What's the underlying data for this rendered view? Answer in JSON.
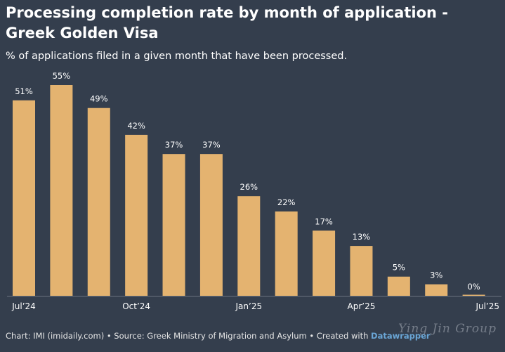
{
  "header": {
    "title": "Processing completion rate by month of application - Greek Golden Visa",
    "subtitle": "% of applications filed in a given month that have been processed."
  },
  "chart_data": {
    "type": "bar",
    "title": "Processing completion rate by month of application - Greek Golden Visa",
    "subtitle": "% of applications filed in a given month that have been processed.",
    "categories": [
      "Jul 24",
      "Aug 24",
      "Sep 24",
      "Oct 24",
      "Nov 24",
      "Dec 24",
      "Jan 25",
      "Feb 25",
      "Mar 25",
      "Apr 25",
      "May 25",
      "Jun 25",
      "Jul 25"
    ],
    "values": [
      51,
      55,
      49,
      42,
      37,
      37,
      26,
      22,
      17,
      13,
      5,
      3,
      0
    ],
    "value_labels": [
      "51%",
      "55%",
      "49%",
      "42%",
      "37%",
      "37%",
      "26%",
      "22%",
      "17%",
      "13%",
      "5%",
      "3%",
      "0%"
    ],
    "x_tick_labels": [
      {
        "index": 0,
        "label": "Jul’24"
      },
      {
        "index": 3,
        "label": "Oct’24"
      },
      {
        "index": 6,
        "label": "Jan’25"
      },
      {
        "index": 9,
        "label": "Apr’25"
      },
      {
        "index": 12,
        "label": "Jul’25"
      }
    ],
    "xlabel": "",
    "ylabel": "",
    "ylim": [
      0,
      55
    ],
    "grid": false,
    "bar_color": "#e4b370"
  },
  "footer": {
    "source_text": "Chart: IMI (imidaily.com) • Source: Greek Ministry of Migration and Asylum • Created with",
    "tool_name": "Datawrapper"
  },
  "watermark": "Ying Jin Group",
  "colors": {
    "background": "#343e4d",
    "bar": "#e4b370",
    "text": "#ffffff",
    "axis": "#6b7380",
    "link": "#6aa6d6"
  }
}
